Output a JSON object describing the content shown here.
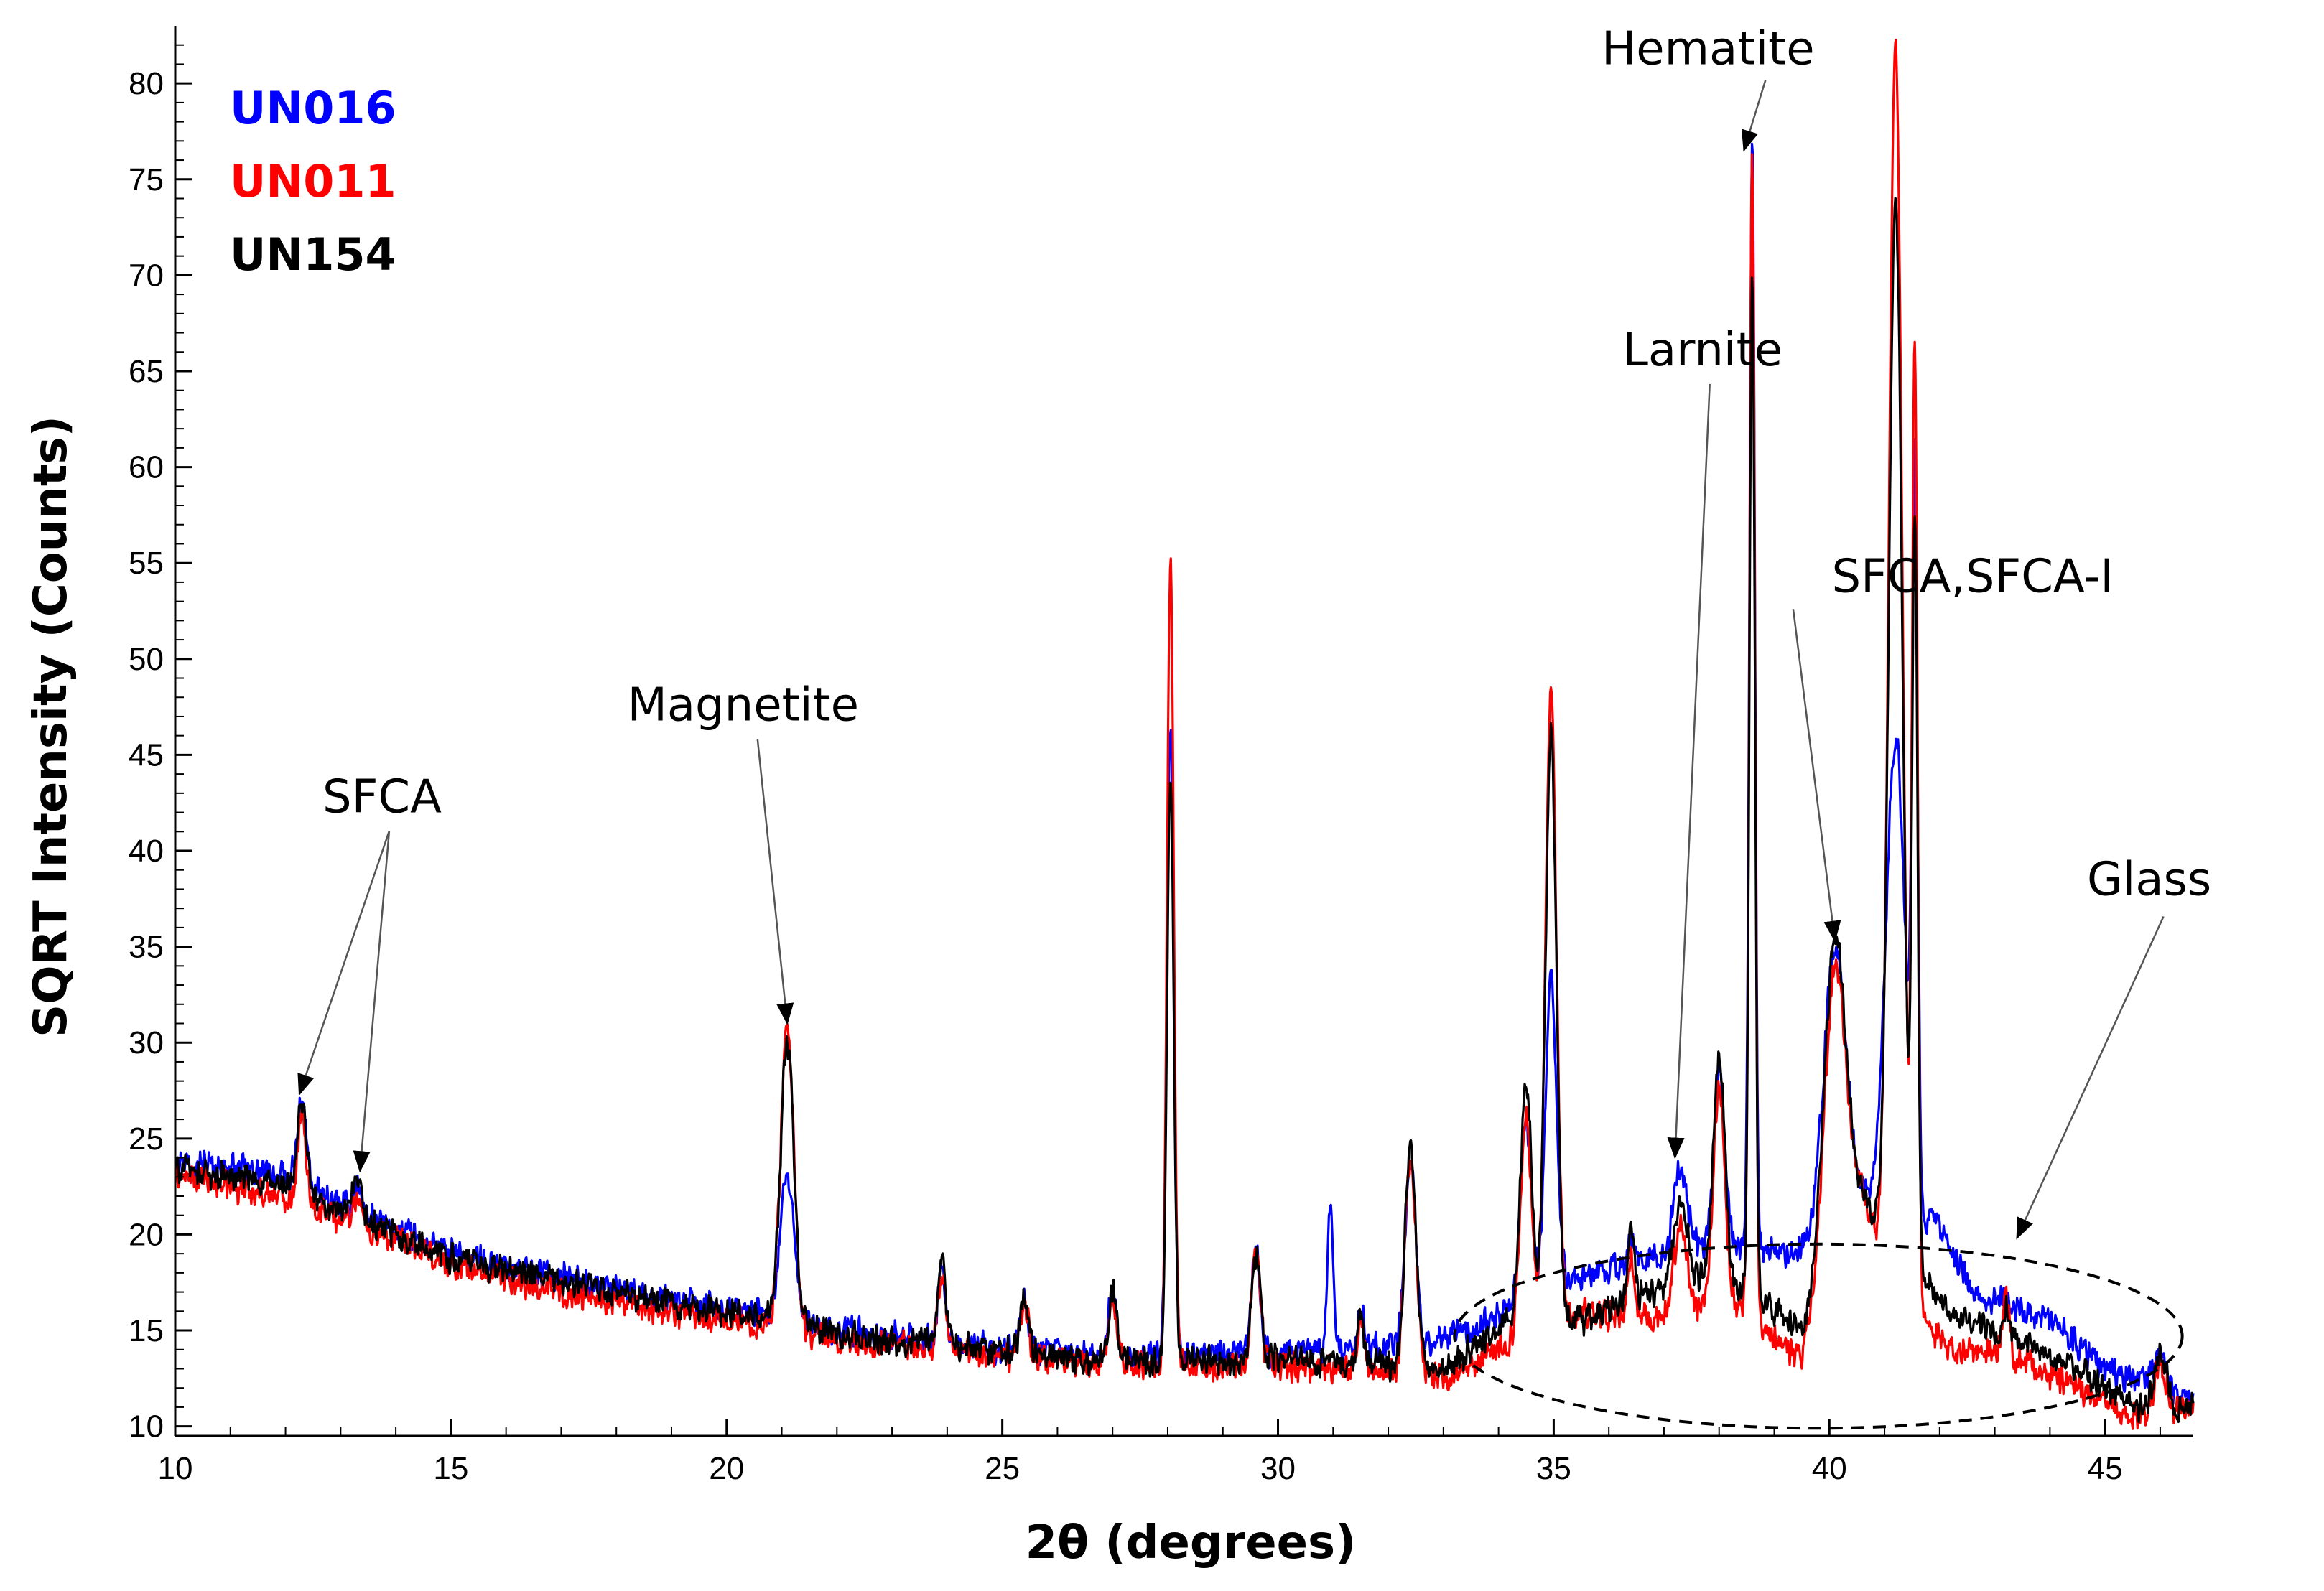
{
  "chart_data": {
    "type": "line",
    "title": "",
    "xlabel": "2θ (degrees)",
    "ylabel": "SQRT Intensity (Counts)",
    "xlim": [
      10,
      46.6
    ],
    "ylim": [
      9.5,
      83
    ],
    "x_ticks": [
      10,
      15,
      20,
      25,
      30,
      35,
      40,
      45
    ],
    "y_ticks": [
      10,
      15,
      20,
      25,
      30,
      35,
      40,
      45,
      50,
      55,
      60,
      65,
      70,
      75,
      80
    ],
    "legend_position": "top-left",
    "series": [
      {
        "name": "UN016",
        "color": "#0000ff",
        "baseline": [
          [
            10,
            24
          ],
          [
            12,
            23
          ],
          [
            13,
            21.5
          ],
          [
            15,
            19
          ],
          [
            17,
            17.8
          ],
          [
            19,
            16.5
          ],
          [
            20.5,
            16
          ],
          [
            22,
            15
          ],
          [
            25,
            14
          ],
          [
            27,
            13.6
          ],
          [
            30,
            13.8
          ],
          [
            33,
            14.5
          ],
          [
            34.2,
            16
          ],
          [
            35.3,
            17.5
          ],
          [
            36.5,
            18.6
          ],
          [
            38,
            19.5
          ],
          [
            39.5,
            19
          ],
          [
            40.6,
            22
          ],
          [
            42,
            20.5
          ],
          [
            42.6,
            17
          ],
          [
            44,
            15.5
          ],
          [
            45,
            13
          ],
          [
            46.6,
            11.5
          ]
        ],
        "peaks": [
          [
            12.3,
            27,
            0.08
          ],
          [
            13.3,
            22.6,
            0.08
          ],
          [
            21.1,
            23,
            0.12
          ],
          [
            23.9,
            18,
            0.07
          ],
          [
            25.4,
            16.8,
            0.07
          ],
          [
            27,
            17,
            0.08
          ],
          [
            28.05,
            47,
            0.06
          ],
          [
            29.6,
            19,
            0.08
          ],
          [
            30.95,
            21.5,
            0.05
          ],
          [
            31.5,
            16,
            0.06
          ],
          [
            32.4,
            23.5,
            0.1
          ],
          [
            34.5,
            26,
            0.1
          ],
          [
            34.95,
            33.5,
            0.1
          ],
          [
            36.4,
            20,
            0.06
          ],
          [
            37.3,
            23.5,
            0.12
          ],
          [
            38,
            28.5,
            0.1
          ],
          [
            38.6,
            77,
            0.05
          ],
          [
            40.1,
            35,
            0.2
          ],
          [
            41.2,
            46,
            0.17
          ],
          [
            41.55,
            58,
            0.05
          ],
          [
            43.2,
            16.5,
            0.06
          ],
          [
            46,
            14,
            0.1
          ]
        ]
      },
      {
        "name": "UN011",
        "color": "#ff0000",
        "baseline": [
          [
            10,
            23
          ],
          [
            12,
            22
          ],
          [
            13,
            20.8
          ],
          [
            15,
            18.4
          ],
          [
            17,
            17
          ],
          [
            19,
            16
          ],
          [
            20.5,
            15.4
          ],
          [
            22,
            14.5
          ],
          [
            25,
            13.7
          ],
          [
            27,
            13.2
          ],
          [
            30,
            13.2
          ],
          [
            33,
            12.5
          ],
          [
            34,
            14
          ],
          [
            35.5,
            16
          ],
          [
            36.5,
            15.5
          ],
          [
            37.5,
            16
          ],
          [
            38,
            17
          ],
          [
            39.5,
            13.5
          ],
          [
            40.6,
            22
          ],
          [
            41,
            18
          ],
          [
            42.2,
            14
          ],
          [
            43,
            14
          ],
          [
            44.5,
            12
          ],
          [
            45.5,
            10.5
          ],
          [
            46.6,
            11
          ]
        ],
        "peaks": [
          [
            12.3,
            26,
            0.08
          ],
          [
            13.3,
            22,
            0.08
          ],
          [
            21.1,
            30.5,
            0.12
          ],
          [
            23.9,
            18,
            0.07
          ],
          [
            25.4,
            16.5,
            0.07
          ],
          [
            27,
            16.5,
            0.08
          ],
          [
            28.05,
            55,
            0.06
          ],
          [
            29.6,
            19,
            0.08
          ],
          [
            31.5,
            16,
            0.06
          ],
          [
            32.4,
            24,
            0.1
          ],
          [
            34.5,
            26,
            0.1
          ],
          [
            34.95,
            48.5,
            0.1
          ],
          [
            36.4,
            18.5,
            0.06
          ],
          [
            37.3,
            20.5,
            0.12
          ],
          [
            38,
            28,
            0.1
          ],
          [
            38.6,
            76,
            0.05
          ],
          [
            40.1,
            34,
            0.2
          ],
          [
            41.2,
            82,
            0.12
          ],
          [
            41.55,
            66,
            0.05
          ],
          [
            43.2,
            17,
            0.06
          ],
          [
            46,
            13.5,
            0.1
          ]
        ]
      },
      {
        "name": "UN154",
        "color": "#000000",
        "baseline": [
          [
            10,
            23.5
          ],
          [
            12,
            22.5
          ],
          [
            13,
            21.2
          ],
          [
            15,
            18.8
          ],
          [
            17,
            17.5
          ],
          [
            19,
            16.4
          ],
          [
            20.5,
            15.7
          ],
          [
            22,
            14.8
          ],
          [
            25,
            14
          ],
          [
            27,
            13.4
          ],
          [
            30,
            13.5
          ],
          [
            33,
            13
          ],
          [
            34.2,
            15.5
          ],
          [
            35.5,
            15.5
          ],
          [
            36.5,
            16.8
          ],
          [
            38,
            18
          ],
          [
            39.5,
            15
          ],
          [
            40.6,
            22
          ],
          [
            41,
            20
          ],
          [
            42.2,
            16
          ],
          [
            43,
            15
          ],
          [
            44.5,
            13
          ],
          [
            45.5,
            11
          ],
          [
            46.6,
            11
          ]
        ],
        "peaks": [
          [
            12.3,
            27,
            0.08
          ],
          [
            13.3,
            22.6,
            0.08
          ],
          [
            21.1,
            30,
            0.12
          ],
          [
            23.9,
            18.5,
            0.07
          ],
          [
            25.4,
            16.5,
            0.07
          ],
          [
            27,
            17,
            0.08
          ],
          [
            28.05,
            44,
            0.06
          ],
          [
            29.6,
            19,
            0.08
          ],
          [
            31.5,
            16,
            0.06
          ],
          [
            32.4,
            24.5,
            0.1
          ],
          [
            34.5,
            28,
            0.1
          ],
          [
            34.95,
            46,
            0.1
          ],
          [
            36.4,
            20,
            0.06
          ],
          [
            37.3,
            22,
            0.12
          ],
          [
            38,
            29.5,
            0.1
          ],
          [
            38.6,
            70,
            0.05
          ],
          [
            40.1,
            35.5,
            0.2
          ],
          [
            41.2,
            74,
            0.12
          ],
          [
            41.55,
            57,
            0.05
          ],
          [
            43.2,
            16,
            0.06
          ],
          [
            46,
            14,
            0.1
          ]
        ]
      }
    ],
    "annotations": [
      {
        "label": "SFCA",
        "text_at": [
          13.75,
          42
        ],
        "arrows_to": [
          [
            12.25,
            27.3
          ],
          [
            13.35,
            23.3
          ]
        ]
      },
      {
        "label": "Magnetite",
        "text_at": [
          20.3,
          46.8
        ],
        "arrows_to": [
          [
            21.1,
            31
          ]
        ]
      },
      {
        "label": "Larnite",
        "text_at": [
          37.7,
          65.3
        ],
        "arrows_to": [
          [
            37.2,
            24
          ]
        ]
      },
      {
        "label": "Hematite",
        "text_at": [
          37.8,
          81
        ],
        "arrows_to": [
          [
            38.45,
            76.5
          ]
        ]
      },
      {
        "label": "SFCA,SFCA-I",
        "text_at": [
          42.6,
          53.5
        ],
        "arrows_to": [
          [
            40.1,
            35.3
          ]
        ]
      },
      {
        "label": "Glass",
        "text_at": [
          45.8,
          37.7
        ],
        "arrows_to": [
          [
            43.4,
            19.8
          ]
        ]
      }
    ],
    "glass_region": {
      "center": [
        39.8,
        14.7
      ],
      "radius": [
        6.6,
        4.8
      ],
      "style": "dashed"
    }
  }
}
